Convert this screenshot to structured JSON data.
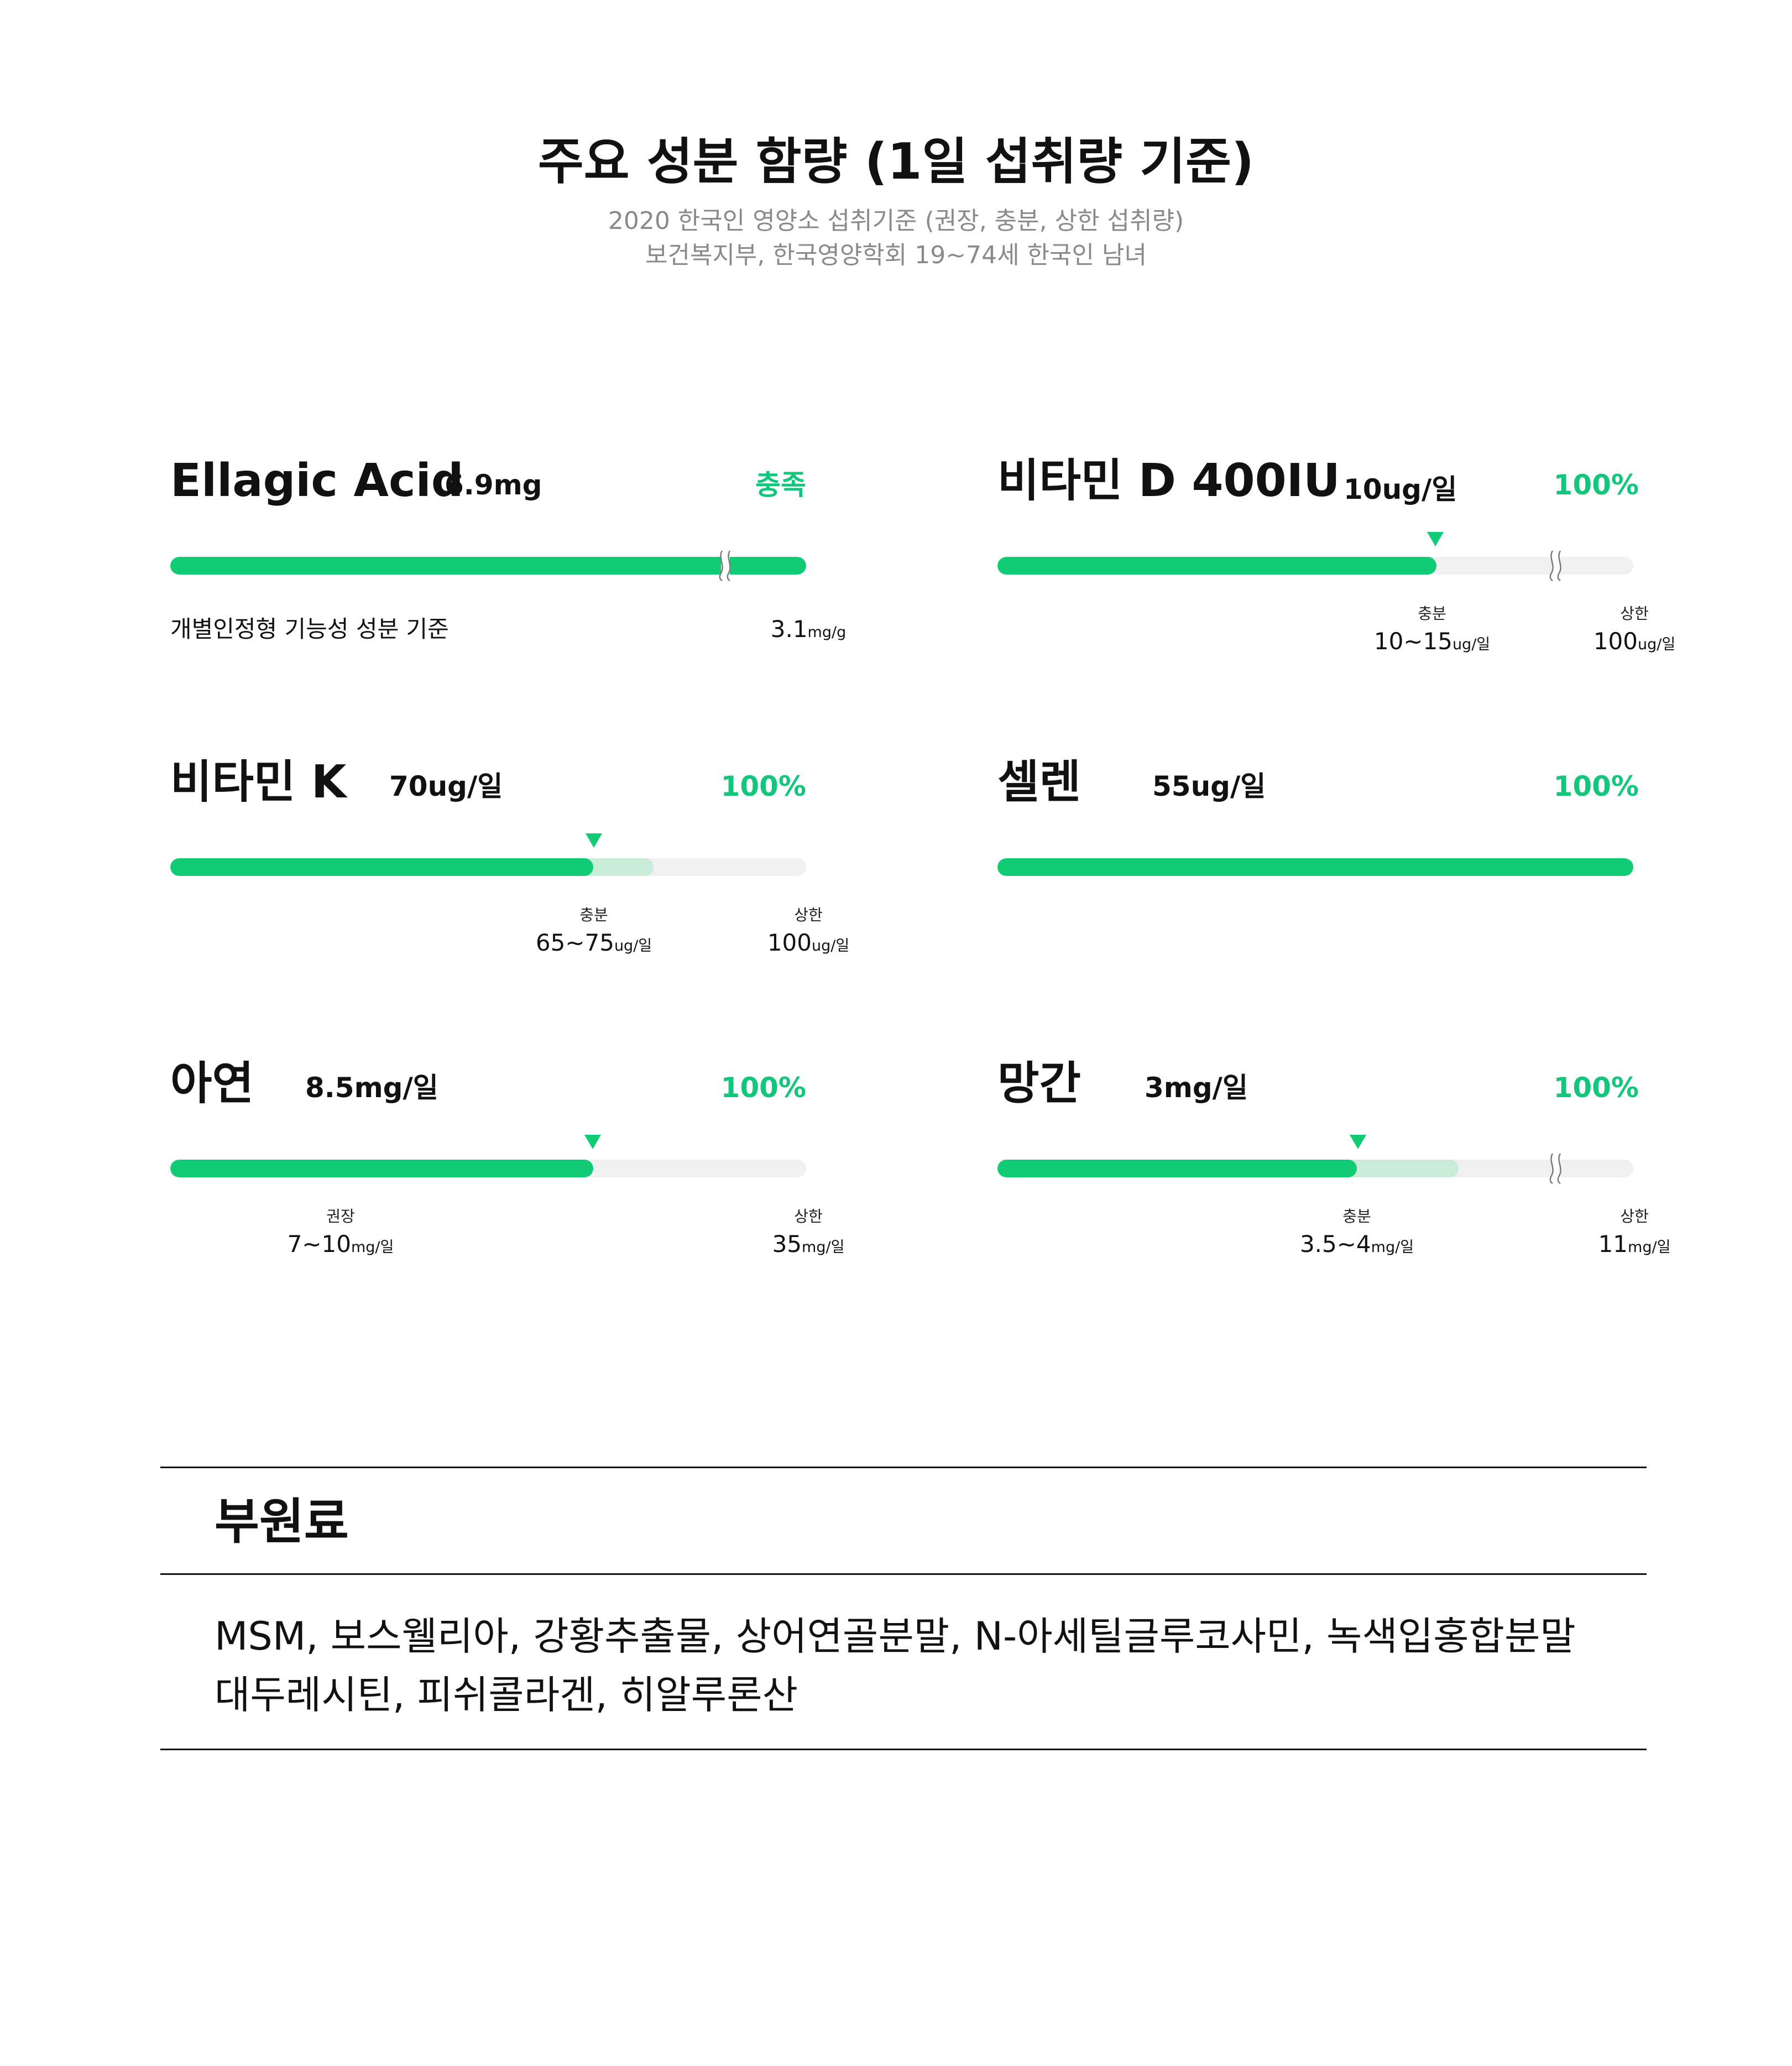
{
  "header": {
    "title": "주요 성분 함량 (1일 섭취량 기준)",
    "subtitle_1": "2020 한국인 영양소 섭취기준 (권장, 충분, 상한 섭취량)",
    "subtitle_2": "보건복지부, 한국영양학회  19~74세 한국인 남녀"
  },
  "colors": {
    "accent": "#12cc75",
    "accent_text": "#12c77b",
    "range": "#c9ecd8",
    "track": "#f0f0f0"
  },
  "nutrients": [
    {
      "name": "Ellagic Acid",
      "amount": "6.9mg",
      "status": "충족",
      "fill_fraction": 1.0,
      "has_break": true,
      "note": "개별인정형 기능성 성분 기준",
      "upper_value": "3.1",
      "upper_unit": "mg/g"
    },
    {
      "name": "비타민 D 400IU",
      "amount": "10ug/일",
      "status": "100%",
      "fill_fraction": 0.69,
      "has_break": true,
      "ref_head": "충분",
      "ref_value": "10~15",
      "ref_unit": "ug/일",
      "upper_head": "상한",
      "upper_value": "100",
      "upper_unit": "ug/일"
    },
    {
      "name": "비타민 K",
      "amount": "70ug/일",
      "status": "100%",
      "fill_fraction": 0.665,
      "range_fraction": 0.76,
      "ref_head": "충분",
      "ref_value": "65~75",
      "ref_unit": "ug/일",
      "upper_head": "상한",
      "upper_value": "100",
      "upper_unit": "ug/일"
    },
    {
      "name": "셀렌",
      "amount": "55ug/일",
      "status": "100%",
      "fill_fraction": 1.0
    },
    {
      "name": "아연",
      "amount": "8.5mg/일",
      "status": "100%",
      "fill_fraction": 0.665,
      "ref_head": "권장",
      "ref_value": "7~10",
      "ref_unit": "mg/일",
      "upper_head": "상한",
      "upper_value": "35",
      "upper_unit": "mg/일"
    },
    {
      "name": "망간",
      "amount": "3mg/일",
      "status": "100%",
      "fill_fraction": 0.565,
      "range_fraction": 0.725,
      "has_break": true,
      "ref_head": "충분",
      "ref_value": "3.5~4",
      "ref_unit": "mg/일",
      "upper_head": "상한",
      "upper_value": "11",
      "upper_unit": "mg/일"
    }
  ],
  "sub_ingredients": {
    "title": "부원료",
    "line_1": "MSM, 보스웰리아, 강황추출물, 상어연골분말, N-아세틸글루코사민, 녹색입홍합분말",
    "line_2": "대두레시틴, 피쉬콜라겐, 히알루론산"
  }
}
